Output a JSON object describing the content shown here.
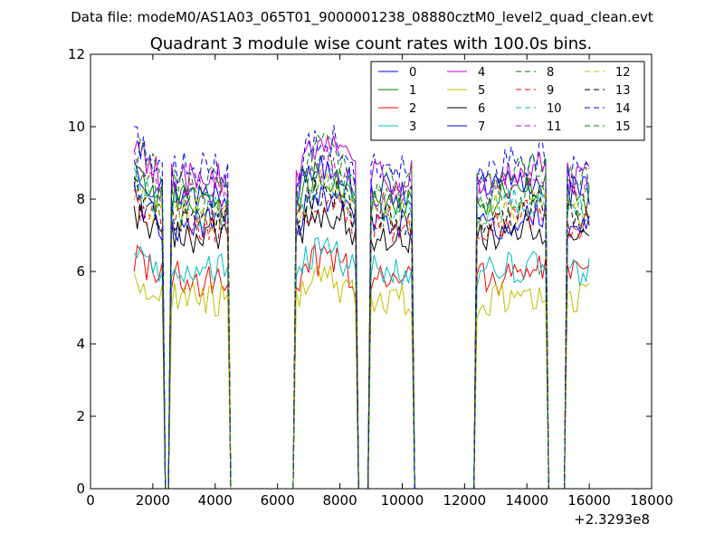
{
  "header": {
    "data_file": "Data file: modeM0/AS1A03_065T01_9000001238_08880cztM0_level2_quad_clean.evt"
  },
  "chart_data": {
    "type": "line",
    "title": "Quadrant 3 module wise count rates with 100.0s bins.",
    "xlabel": "",
    "ylabel": "",
    "xlim": [
      0,
      18000
    ],
    "ylim": [
      0,
      12
    ],
    "x_offset_label": "+2.3293e8",
    "x_ticks": [
      0,
      2000,
      4000,
      6000,
      8000,
      10000,
      12000,
      14000,
      16000,
      18000
    ],
    "y_ticks": [
      0,
      2,
      4,
      6,
      8,
      10,
      12
    ],
    "grid": false,
    "legend_position": "top-right",
    "legend_columns": 4,
    "x_start": 1400,
    "x_step": 100,
    "segments": [
      {
        "x": [
          1400,
          2300
        ]
      },
      {
        "x": [
          2600,
          4400
        ]
      },
      {
        "x": [
          6600,
          8500
        ]
      },
      {
        "x": [
          9000,
          10300
        ]
      },
      {
        "x": [
          12400,
          14600
        ]
      },
      {
        "x": [
          15300,
          16000
        ]
      }
    ],
    "series": [
      {
        "name": "0",
        "color": "#0000ff",
        "dash": false,
        "level": 8.2
      },
      {
        "name": "1",
        "color": "#008000",
        "dash": false,
        "level": 7.9
      },
      {
        "name": "2",
        "color": "#ff0000",
        "dash": false,
        "level": 5.8
      },
      {
        "name": "3",
        "color": "#00bfbf",
        "dash": false,
        "level": 6.0
      },
      {
        "name": "4",
        "color": "#bf00bf",
        "dash": false,
        "level": 8.6
      },
      {
        "name": "5",
        "color": "#bfbf00",
        "dash": false,
        "level": 5.2
      },
      {
        "name": "6",
        "color": "#000000",
        "dash": false,
        "level": 7.0
      },
      {
        "name": "7",
        "color": "#0000ff",
        "dash": false,
        "level": 7.3
      },
      {
        "name": "8",
        "color": "#008000",
        "dash": true,
        "level": 8.0
      },
      {
        "name": "9",
        "color": "#ff0000",
        "dash": true,
        "level": 7.3
      },
      {
        "name": "10",
        "color": "#00bfbf",
        "dash": true,
        "level": 7.7
      },
      {
        "name": "11",
        "color": "#bf00bf",
        "dash": true,
        "level": 8.1
      },
      {
        "name": "12",
        "color": "#bfbf00",
        "dash": true,
        "level": 7.6
      },
      {
        "name": "13",
        "color": "#000000",
        "dash": true,
        "level": 7.5
      },
      {
        "name": "14",
        "color": "#0000ff",
        "dash": true,
        "level": 8.8
      },
      {
        "name": "15",
        "color": "#008000",
        "dash": true,
        "level": 8.5
      }
    ]
  }
}
